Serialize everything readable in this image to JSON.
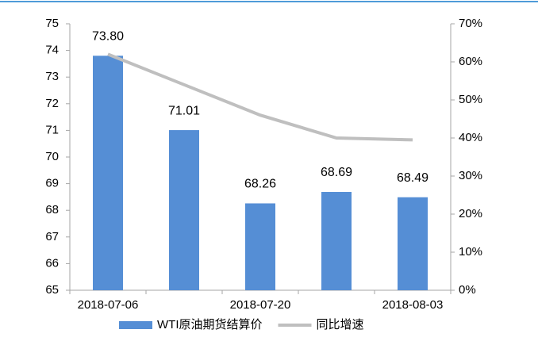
{
  "chart_data": {
    "type": "bar",
    "categories": [
      "2018-07-06",
      null,
      "2018-07-20",
      null,
      "2018-08-03"
    ],
    "series": [
      {
        "name": "WTI原油期货结算价",
        "type": "bar",
        "color": "#558ed5",
        "values": [
          73.8,
          71.01,
          68.26,
          68.69,
          68.49
        ],
        "value_labels": [
          "73.80",
          "71.01",
          "68.26",
          "68.69",
          "68.49"
        ]
      },
      {
        "name": "同比增速",
        "type": "line",
        "axis": "y2",
        "color": "#bfbfbf",
        "values": [
          62,
          54,
          46,
          40,
          39.5
        ]
      }
    ],
    "ylim": [
      65,
      75
    ],
    "yticks": [
      65,
      66,
      67,
      68,
      69,
      70,
      71,
      72,
      73,
      74,
      75
    ],
    "y2lim": [
      0,
      70
    ],
    "y2ticks": [
      {
        "value": 0,
        "label": "0%"
      },
      {
        "value": 10,
        "label": "10%"
      },
      {
        "value": 20,
        "label": "20%"
      },
      {
        "value": 30,
        "label": "30%"
      },
      {
        "value": 40,
        "label": "40%"
      },
      {
        "value": 50,
        "label": "50%"
      },
      {
        "value": 60,
        "label": "60%"
      },
      {
        "value": 70,
        "label": "70%"
      }
    ],
    "legend": "bottom"
  }
}
